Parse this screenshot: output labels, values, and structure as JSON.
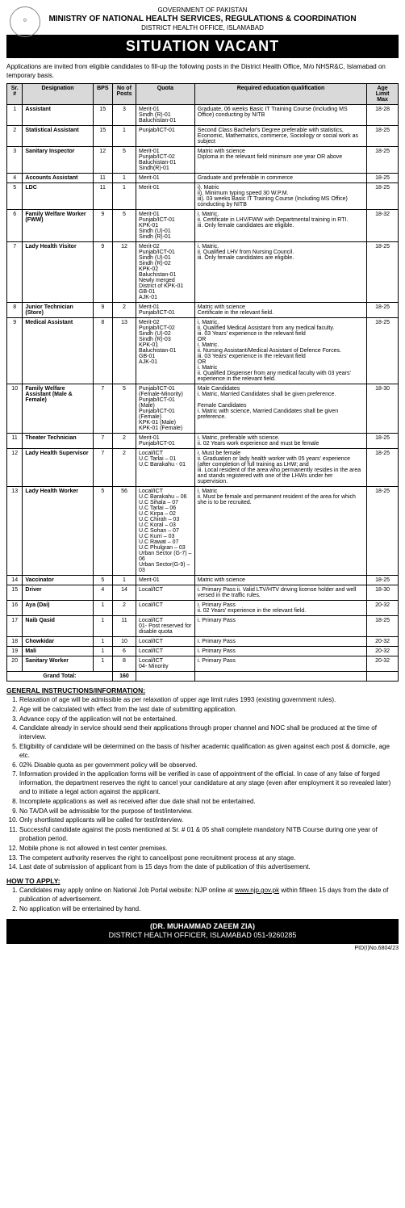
{
  "header": {
    "gov": "GOVERNMENT OF PAKISTAN",
    "ministry": "MINISTRY OF NATIONAL HEALTH SERVICES, REGULATIONS & COORDINATION",
    "office": "DISTRICT HEALTH OFFICE, ISLAMABAD",
    "banner": "SITUATION VACANT",
    "logo": "⚙"
  },
  "intro": "Applications are invited from eligible candidates to fill-up the following posts in the District Health Office, M/o NHSR&C, Islamabad on temporary basis.",
  "columns": [
    "Sr.#",
    "Designation",
    "BPS",
    "No of Posts",
    "Quota",
    "Required education qualification",
    "Age Limit Max"
  ],
  "rows": [
    {
      "sr": "1",
      "desig": "Assistant",
      "bps": "15",
      "posts": "3",
      "quota": "Merit-01\nSindh (R)-01\nBaluchistan-01",
      "qual": "Graduate, 06 weeks Basic IT Training Course (Including MS Office) conducting by NITB",
      "age": "18-28"
    },
    {
      "sr": "2",
      "desig": "Statistical Assistant",
      "bps": "15",
      "posts": "1",
      "quota": "Punjab/ICT-01",
      "qual": "Second Class Bachelor's Degree preferable with statistics, Economic, Mathematics, commerce, Sociology or social work as subject",
      "age": "18-25"
    },
    {
      "sr": "3",
      "desig": "Sanitary Inspector",
      "bps": "12",
      "posts": "5",
      "quota": "Merit-01\nPunjab/ICT-02\nBaluchistan-01\nSindh(R)-01",
      "qual": "Matric with science\nDiploma in the relevant field minimum one year OR above",
      "age": "18-25"
    },
    {
      "sr": "4",
      "desig": "Accounts Assistant",
      "bps": "11",
      "posts": "1",
      "quota": "Merit-01",
      "qual": "Graduate and preferable in commerce",
      "age": "18-25"
    },
    {
      "sr": "5",
      "desig": "LDC",
      "bps": "11",
      "posts": "1",
      "quota": "Merit-01",
      "qual": "i). Matric\nii). Minimum typing speed 30 W.P.M.\niii). 03 weeks Basic IT Training Course (Including MS Office) conducting by NITB",
      "age": "18-25"
    },
    {
      "sr": "6",
      "desig": "Family Welfare Worker (FWW)",
      "bps": "9",
      "posts": "5",
      "quota": "Merit-01\nPunjab/ICT-01\nKPK-01\nSindh (U)-01\nSindh (R)-01",
      "qual": "i. Matric.\nii. Certificate in LHV/FWW with Departmental training in RTI.\niii. Only female candidates are eligible.",
      "age": "18-32"
    },
    {
      "sr": "7",
      "desig": "Lady Health Visitor",
      "bps": "9",
      "posts": "12",
      "quota": "Merit-02\nPunjab/ICT-01\nSindh (U)-01\nSindh (R)-02\nKPK-02\nBaluchistan-01\nNewly merged District of KPK-01\nGB-01\nAJK-01",
      "qual": "i. Matric.\nii. Qualified LHV from Nursing Council.\niii. Only female candidates are eligible.",
      "age": "18-25"
    },
    {
      "sr": "8",
      "desig": "Junior Technician (Store)",
      "bps": "9",
      "posts": "2",
      "quota": "Merit-01\nPunjab/ICT-01",
      "qual": "Matric with science\nCertificate in the relevant field.",
      "age": "18-25"
    },
    {
      "sr": "9",
      "desig": "Medical Assistant",
      "bps": "8",
      "posts": "13",
      "quota": "Merit-02\nPunjab/ICT-02\nSindh (U)-02\nSindh (R)-03\nKPK-01\nBaluchistan-01\nGB-01\nAJK-01",
      "qual": "i. Matric.\nii. Qualified Medical Assistant from any medical faculty.\niii. 03 Years' experience in the relevant field\nOR\ni. Matric.\nii. Nursing Assistant/Medical Assistant of Defence Forces.\niii. 03 Years' experience in the relevant field\nOR\ni. Matric\nii. Qualified Dispenser from any medical faculty with 03 years' experience in the relevant field.",
      "age": "18-25"
    },
    {
      "sr": "10",
      "desig": "Family Welfare Assistant (Male & Female)",
      "bps": "7",
      "posts": "5",
      "quota": "Punjab/ICT-01 (Female-Minority)\nPunjab/ICT-01 (Male)\nPunjab/ICT-01 (Female)\nKPK-01 (Male)\nKPK-01 (Female)",
      "qual": "Male Candidates\ni. Matric, Married Candidates shall be given preference.\n\nFemale Candidates\ni. Matric with science, Married Candidates shall be given preference.",
      "age": "18-30"
    },
    {
      "sr": "11",
      "desig": "Theater Technician",
      "bps": "7",
      "posts": "2",
      "quota": "Merit-01\nPunjab/ICT-01",
      "qual": "i. Matric, preferable with science.\nii. 02 Years work experience and must be female",
      "age": "18-25"
    },
    {
      "sr": "12",
      "desig": "Lady Health Supervisor",
      "bps": "7",
      "posts": "2",
      "quota": "Local/ICT\nU.C Tarlai – 01\nU.C Barakahu - 01",
      "qual": "i. Must be female\nii. Graduation or lady health worker with 05 years' experience (after completion of full training as LHW; and\niii. Local resident of the area who permanently resides in the area and stands registered with one of the LHWs under her supervision.",
      "age": "18-25"
    },
    {
      "sr": "13",
      "desig": "Lady Health Worker",
      "bps": "5",
      "posts": "56",
      "quota": "Local/ICT\nU.C Barakahu – 06\nU.C Sihala – 07\nU.C Tarlai – 06\nU.C Kirpa – 02\nU.C Chirah – 03\nU.C Koral – 03\nU.C Sohan – 07\nU.C Kurri – 03\nU.C Rawat – 07\nU.C Phulgran – 03\nUrban Sector (G-7) – 06\nUrban Sector(G-9) – 03",
      "qual": "i. Matric\nii. Must be female and permanent resident of the area for which she is to be recruited.",
      "age": "18-25"
    },
    {
      "sr": "14",
      "desig": "Vaccinator",
      "bps": "5",
      "posts": "1",
      "quota": "Merit-01",
      "qual": "Matric with science",
      "age": "18-25"
    },
    {
      "sr": "15",
      "desig": "Driver",
      "bps": "4",
      "posts": "14",
      "quota": "Local/ICT",
      "qual": "i. Primary Pass ii. Valid LTV/HTV driving license holder and well versed in the traffic rules.",
      "age": "18-30"
    },
    {
      "sr": "16",
      "desig": "Aya (Dai)",
      "bps": "1",
      "posts": "2",
      "quota": "Local/ICT",
      "qual": "i. Primary Pass\nii. 02 Years' experience in the relevant field.",
      "age": "20-32"
    },
    {
      "sr": "17",
      "desig": "Naib Qasid",
      "bps": "1",
      "posts": "11",
      "quota": "Local/ICT\n01- Post reserved for disable quota",
      "qual": "i. Primary Pass",
      "age": "18-25"
    },
    {
      "sr": "18",
      "desig": "Chowkidar",
      "bps": "1",
      "posts": "10",
      "quota": "Local/ICT",
      "qual": "i. Primary Pass",
      "age": "20-32"
    },
    {
      "sr": "19",
      "desig": "Mali",
      "bps": "1",
      "posts": "6",
      "quota": "Local/ICT",
      "qual": "i. Primary Pass",
      "age": "20-32"
    },
    {
      "sr": "20",
      "desig": "Sanitary Worker",
      "bps": "1",
      "posts": "8",
      "quota": "Local/ICT\n04- Minority",
      "qual": "i. Primary Pass",
      "age": "20-32"
    }
  ],
  "grand_label": "Grand Total:",
  "grand_total": "160",
  "instructions_heading": "GENERAL INSTRUCTIONS/INFORMATION:",
  "instructions": [
    "Relaxation of age will be admissible as per relaxation of upper age limit rules 1993 (existing government rules).",
    "Age will be calculated with effect from the last date of submitting application.",
    "Advance copy of the application will not be entertained.",
    "Candidate already in service should send their applications through proper channel and NOC shall be produced at the time of interview.",
    "Eligibility of candidate will be determined on the basis of his/her academic qualification as given against each post & domicile, age etc.",
    "02% Disable quota as per government policy will be observed.",
    "Information provided in the application forms will be verified in case of appointment of the official. In case of any false of forged information, the department reserves the right to cancel your candidature at any stage (even after employment it so revealed later) and to initiate a legal action against the applicant.",
    "Incomplete applications as well as received after due date shall not be entertained.",
    "No TA/DA will be admissible for the purpose of test/interview.",
    "Only shortlisted applicants will be called for test/interview.",
    "Successful candidate against the posts mentioned at Sr. # 01 & 05 shall complete mandatory NITB Course during one year of probation period.",
    "Mobile phone is not allowed in test center premises.",
    "The competent authority reserves the right to cancel/post pone recruitment process at any stage.",
    "Last date of submission of applicant from is 15 days from the date of publication of this advertisement."
  ],
  "howto_heading": "HOW TO APPLY:",
  "howto": [
    "Candidates may apply online on National Job Portal website: NJP online at www.njp.gov.pk within fifteen 15 days from the date of publication of advertisement.",
    "No application will be entertained by hand."
  ],
  "footer": {
    "name": "(DR. MUHAMMAD ZAEEM ZIA)",
    "title": "DISTRICT HEALTH OFFICER, ISLAMABAD 051-9260285"
  },
  "pid": "PID(I)No.6804/23"
}
